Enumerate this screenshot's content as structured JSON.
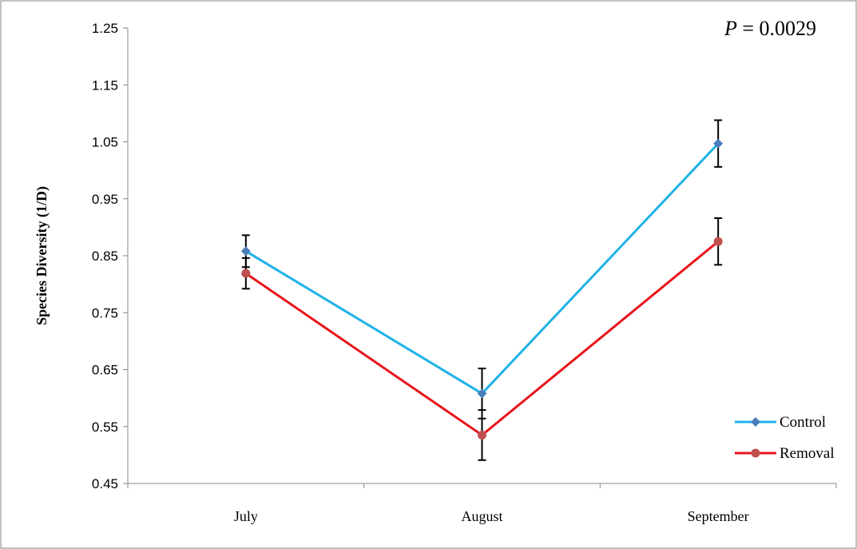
{
  "colors": {
    "control": "#1fb2e8",
    "control_marker": "#4a7ebb",
    "removal": "#e8141b",
    "removal_marker": "#c0504d",
    "errorbar": "#000000",
    "axis": "#868686",
    "frame": "#868686"
  },
  "chart_data": {
    "type": "line",
    "ylabel": "Species Diversity (1/D)",
    "categories": [
      "July",
      "August",
      "September"
    ],
    "ylim": [
      0.45,
      1.25
    ],
    "yticks": [
      0.45,
      0.55,
      0.65,
      0.75,
      0.85,
      0.95,
      1.05,
      1.15,
      1.25
    ],
    "ytick_labels": [
      "0.45",
      "0.55",
      "0.65",
      "0.75",
      "0.85",
      "0.95",
      "1.05",
      "1.15",
      "1.25"
    ],
    "grid": false,
    "legend_position": "bottom-right",
    "annotation": {
      "italic": "P",
      "rest": " = 0.0029"
    },
    "series": [
      {
        "name": "Control",
        "marker": "diamond",
        "values": [
          0.858,
          0.608,
          1.047
        ],
        "errors": [
          0.028,
          0.044,
          0.041
        ]
      },
      {
        "name": "Removal",
        "marker": "circle",
        "values": [
          0.819,
          0.535,
          0.875
        ],
        "errors": [
          0.027,
          0.044,
          0.041
        ]
      }
    ]
  }
}
